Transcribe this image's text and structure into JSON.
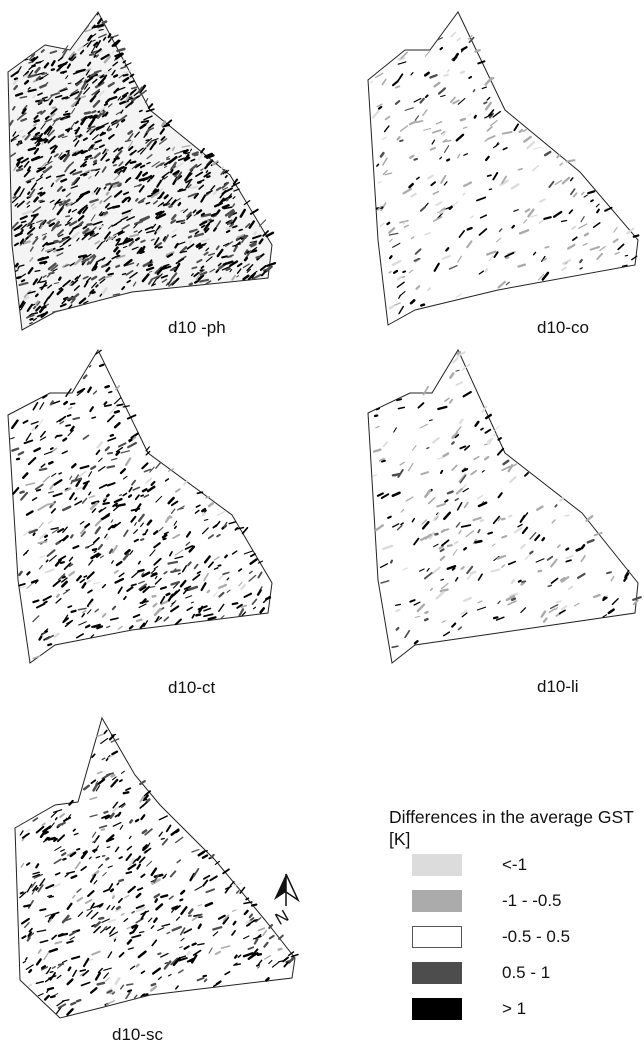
{
  "panels": [
    {
      "id": "ph",
      "label": "d10 -ph",
      "density": "high"
    },
    {
      "id": "co",
      "label": "d10-co",
      "density": "low"
    },
    {
      "id": "ct",
      "label": "d10-ct",
      "density": "medium"
    },
    {
      "id": "li",
      "label": "d10-li",
      "density": "low"
    },
    {
      "id": "sc",
      "label": "d10-sc",
      "density": "medium"
    }
  ],
  "legend": {
    "title": "Differences in the average GST [K]",
    "items": [
      {
        "label": "<-1",
        "color": "#dcdcdc"
      },
      {
        "label": "-1 - -0.5",
        "color": "#ababab"
      },
      {
        "label": "-0.5 - 0.5",
        "color": "#ffffff"
      },
      {
        "label": "0.5 - 1",
        "color": "#4d4d4d"
      },
      {
        "label": "> 1",
        "color": "#000000"
      }
    ]
  },
  "north_arrow": {
    "letter": "N"
  }
}
